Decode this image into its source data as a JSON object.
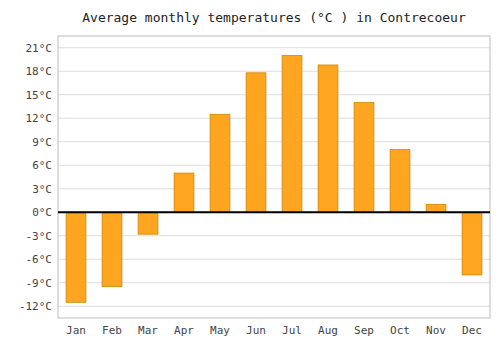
{
  "chart_data": {
    "type": "bar",
    "title": "Average monthly temperatures (°C ) in Contrecoeur",
    "categories": [
      "Jan",
      "Feb",
      "Mar",
      "Apr",
      "May",
      "Jun",
      "Jul",
      "Aug",
      "Sep",
      "Oct",
      "Nov",
      "Dec"
    ],
    "values": [
      -11.5,
      -9.5,
      -2.8,
      5.0,
      12.5,
      17.8,
      20.0,
      18.8,
      14.0,
      8.0,
      1.0,
      -8.0
    ],
    "color": "#FFA520",
    "ylim": [
      -13.5,
      22.5
    ],
    "yticks": [
      {
        "value": -12,
        "label": "-12°C"
      },
      {
        "value": -9,
        "label": "-9°C"
      },
      {
        "value": -6,
        "label": "-6°C"
      },
      {
        "value": -3,
        "label": "-3°C"
      },
      {
        "value": 0,
        "label": "0°C"
      },
      {
        "value": 3,
        "label": "3°C"
      },
      {
        "value": 6,
        "label": "6°C"
      },
      {
        "value": 9,
        "label": "9°C"
      },
      {
        "value": 12,
        "label": "12°C"
      },
      {
        "value": 15,
        "label": "15°C"
      },
      {
        "value": 18,
        "label": "18°C"
      },
      {
        "value": 21,
        "label": "21°C"
      }
    ],
    "grid": true
  }
}
